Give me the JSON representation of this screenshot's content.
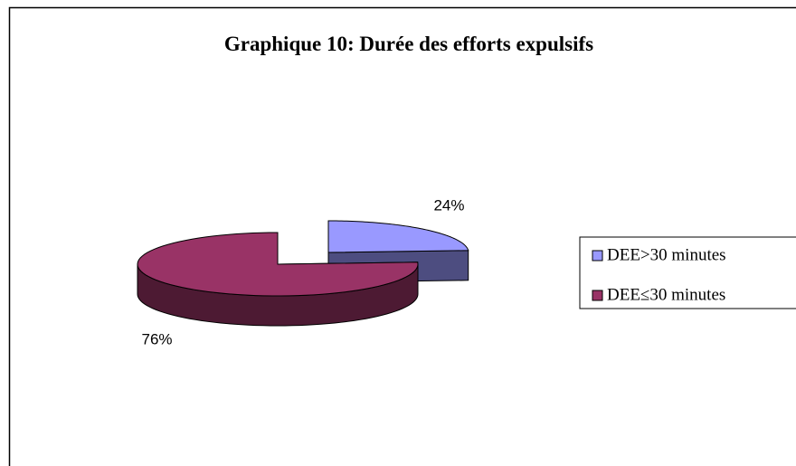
{
  "chart_data": {
    "type": "pie",
    "title": "Graphique 10: Durée des efforts expulsifs",
    "categories": [
      "DEE>30 minutes",
      "DEE≤30 minutes"
    ],
    "values": [
      24,
      76
    ],
    "value_labels": [
      "24%",
      "76%"
    ],
    "colors": [
      "#9999ff",
      "#993366"
    ],
    "legend": "right"
  }
}
